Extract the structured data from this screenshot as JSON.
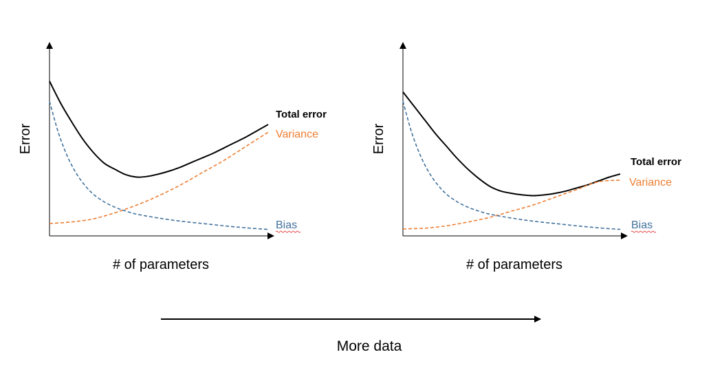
{
  "chart_data": [
    {
      "type": "line",
      "ylabel": "Error",
      "xlabel": "# of parameters",
      "xlim": [
        0,
        10
      ],
      "ylim": [
        0,
        10
      ],
      "grid": false,
      "series": [
        {
          "name": "Total error",
          "color": "#000000",
          "style": "solid",
          "x": [
            0,
            0.5,
            1,
            1.5,
            2,
            2.5,
            3,
            3.5,
            4,
            4.5,
            5,
            5.5,
            6,
            6.5,
            7,
            7.5,
            8,
            8.5,
            9,
            9.5,
            10
          ],
          "y": [
            10,
            8.6,
            7.4,
            6.3,
            5.4,
            4.7,
            4.3,
            3.95,
            3.8,
            3.85,
            4.0,
            4.2,
            4.45,
            4.75,
            5.05,
            5.35,
            5.7,
            6.05,
            6.4,
            6.8,
            7.2
          ]
        },
        {
          "name": "Variance",
          "color": "#ED7D31",
          "style": "dashed",
          "x": [
            0,
            1,
            2,
            3,
            4,
            5,
            6,
            7,
            8,
            9,
            10
          ],
          "y": [
            0.8,
            0.9,
            1.1,
            1.5,
            2.0,
            2.6,
            3.3,
            4.1,
            4.9,
            5.8,
            6.7
          ]
        },
        {
          "name": "Bias",
          "color": "#41719C",
          "style": "dashed",
          "x": [
            0,
            0.4,
            0.8,
            1.2,
            1.6,
            2,
            2.5,
            3,
            3.5,
            4,
            5,
            6,
            7,
            8,
            9,
            10
          ],
          "y": [
            8.7,
            6.7,
            5.2,
            4.1,
            3.3,
            2.7,
            2.2,
            1.85,
            1.6,
            1.4,
            1.15,
            0.95,
            0.8,
            0.65,
            0.52,
            0.42
          ]
        }
      ]
    },
    {
      "type": "line",
      "ylabel": "Error",
      "xlabel": "# of parameters",
      "xlim": [
        0,
        10
      ],
      "ylim": [
        0,
        10
      ],
      "grid": false,
      "series": [
        {
          "name": "Total error",
          "color": "#000000",
          "style": "solid",
          "x": [
            0,
            0.5,
            1,
            1.5,
            2,
            2.5,
            3,
            3.5,
            4,
            4.5,
            5,
            5.5,
            6,
            6.5,
            7,
            7.5,
            8,
            8.5,
            9,
            9.5,
            10
          ],
          "y": [
            9.3,
            8.4,
            7.5,
            6.6,
            5.8,
            5.0,
            4.3,
            3.7,
            3.2,
            2.9,
            2.75,
            2.65,
            2.6,
            2.65,
            2.75,
            2.9,
            3.1,
            3.3,
            3.55,
            3.8,
            4.0
          ]
        },
        {
          "name": "Variance",
          "color": "#ED7D31",
          "style": "dashed",
          "x": [
            0,
            1,
            2,
            3,
            4,
            5,
            6,
            7,
            8,
            9,
            10
          ],
          "y": [
            0.45,
            0.5,
            0.65,
            0.9,
            1.2,
            1.6,
            2.0,
            2.5,
            3.0,
            3.5,
            3.6
          ]
        },
        {
          "name": "Bias",
          "color": "#41719C",
          "style": "dashed",
          "x": [
            0,
            0.4,
            0.8,
            1.2,
            1.6,
            2,
            2.5,
            3,
            3.5,
            4,
            5,
            6,
            7,
            8,
            9,
            10
          ],
          "y": [
            8.7,
            6.7,
            5.2,
            4.1,
            3.3,
            2.7,
            2.2,
            1.85,
            1.6,
            1.4,
            1.15,
            0.95,
            0.8,
            0.65,
            0.52,
            0.42
          ]
        }
      ]
    }
  ],
  "caption": "More data"
}
